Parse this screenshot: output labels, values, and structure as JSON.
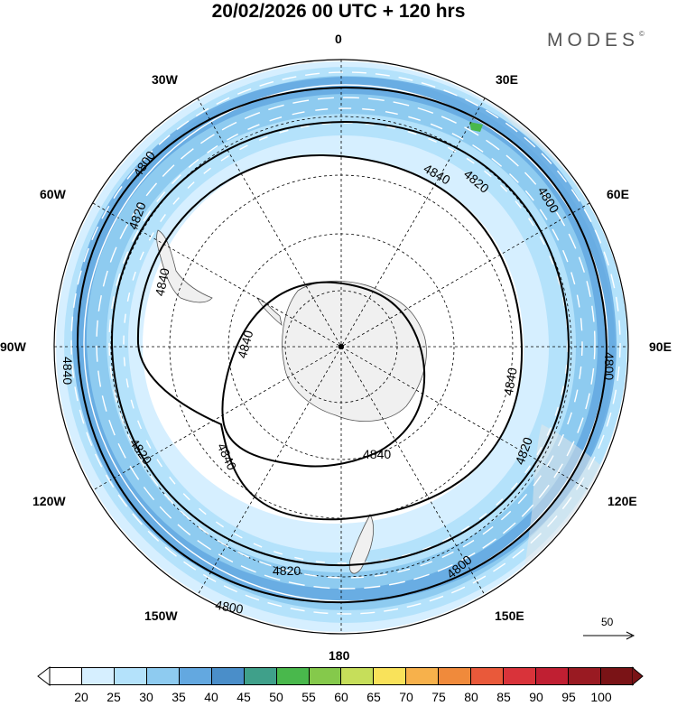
{
  "title": "20/02/2026  00 UTC  + 120 hrs",
  "brand": "MODES",
  "brand_mark": "©",
  "lon_labels": {
    "n": "0",
    "e30": "30E",
    "e60": "60E",
    "e90": "90E",
    "e120": "120E",
    "e150": "150E",
    "s": "180",
    "w150": "150W",
    "w120": "120W",
    "w90": "90W",
    "w60": "60W",
    "w30": "30W"
  },
  "contours": [
    "4800",
    "4820",
    "4840"
  ],
  "contour_labels": {
    "a": "4800",
    "b": "4820",
    "c": "4840",
    "d": "4820",
    "e": "4800",
    "f": "4840",
    "g": "4840",
    "h": "4800",
    "i": "4840",
    "j": "4820",
    "k": "4840",
    "l": "4840",
    "m": "4840",
    "n": "4820",
    "o": "4800",
    "p": "4800"
  },
  "wind_reference": "50",
  "colorbar": {
    "values": [
      "20",
      "25",
      "30",
      "35",
      "40",
      "45",
      "50",
      "55",
      "60",
      "65",
      "70",
      "75",
      "80",
      "85",
      "90",
      "95",
      "100"
    ],
    "colors": [
      "#ffffff",
      "#d6efff",
      "#b4e2fb",
      "#8ecbf0",
      "#63a8e0",
      "#4a8ec9",
      "#3fa08a",
      "#49b84c",
      "#85c94b",
      "#c6de5a",
      "#f9e25a",
      "#f7b14b",
      "#f08a3b",
      "#e9593a",
      "#d9333a",
      "#c01f32",
      "#991a22",
      "#7a1316"
    ]
  },
  "colors": {
    "land": "#f0f0f0",
    "land_stroke": "#555555",
    "graticule": "#000000",
    "contour": "#000000",
    "jet_light": "#b4e2fb",
    "jet_mid": "#8ecbf0",
    "jet_dark": "#63a8e0",
    "pale": "#d6efff"
  }
}
